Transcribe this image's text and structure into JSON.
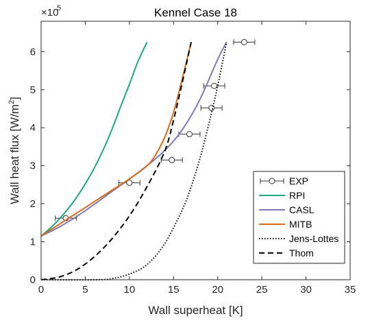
{
  "chart_data": {
    "type": "line",
    "title": "Kennel Case 18",
    "xlabel": "Wall superheat [K]",
    "ylabel_main": "Wall heat flux [W/m",
    "ylabel_sup": "2",
    "ylabel_end": "]",
    "y_exponent_base": "×10",
    "y_exponent_power": "5",
    "xlim": [
      0,
      35
    ],
    "ylim": [
      0,
      6.8
    ],
    "xticks": [
      0,
      5,
      10,
      15,
      20,
      25,
      30,
      35
    ],
    "yticks": [
      0,
      1,
      2,
      3,
      4,
      5,
      6
    ],
    "grid": false,
    "legend_position": "bottom-right",
    "series": [
      {
        "name": "EXP",
        "style": "markers",
        "color": "#333333",
        "points": [
          {
            "x": 2.8,
            "y": 1.62,
            "xerr": 1.2
          },
          {
            "x": 10.0,
            "y": 2.55,
            "xerr": 1.2
          },
          {
            "x": 14.8,
            "y": 3.15,
            "xerr": 1.2
          },
          {
            "x": 16.8,
            "y": 3.83,
            "xerr": 1.2
          },
          {
            "x": 19.3,
            "y": 4.52,
            "xerr": 1.2
          },
          {
            "x": 19.6,
            "y": 5.1,
            "xerr": 1.2
          },
          {
            "x": 23.0,
            "y": 6.25,
            "xerr": 1.2
          }
        ]
      },
      {
        "name": "RPI",
        "style": "solid",
        "color": "#1aa884",
        "x": [
          0,
          1,
          2,
          3,
          4,
          5,
          6,
          7,
          8,
          9,
          10,
          11,
          12
        ],
        "y": [
          1.15,
          1.35,
          1.58,
          1.85,
          2.16,
          2.52,
          2.93,
          3.4,
          3.94,
          4.55,
          5.14,
          5.76,
          6.25
        ]
      },
      {
        "name": "CASL",
        "style": "solid",
        "color": "#7e78ba",
        "x": [
          0,
          2,
          4,
          6,
          8,
          10,
          12,
          14,
          16,
          18,
          20,
          21
        ],
        "y": [
          1.15,
          1.38,
          1.66,
          1.98,
          2.32,
          2.65,
          3.0,
          3.4,
          3.95,
          4.75,
          5.8,
          6.25
        ]
      },
      {
        "name": "MITB",
        "style": "solid",
        "color": "#d66a18",
        "x": [
          0,
          2,
          4,
          6,
          8,
          10,
          12,
          13,
          14,
          15,
          16,
          17
        ],
        "y": [
          1.15,
          1.45,
          1.75,
          2.05,
          2.35,
          2.65,
          3.0,
          3.3,
          3.75,
          4.4,
          5.3,
          6.25
        ]
      },
      {
        "name": "Jens-Lottes",
        "style": "dotted",
        "color": "#000000",
        "x": [
          0,
          6,
          8,
          10,
          12,
          14,
          16,
          17,
          18,
          19,
          20,
          21
        ],
        "y": [
          0,
          0,
          0.03,
          0.15,
          0.4,
          0.95,
          1.85,
          2.45,
          3.2,
          4.1,
          5.1,
          6.25
        ]
      },
      {
        "name": "Thom",
        "style": "dashed",
        "color": "#000000",
        "x": [
          0,
          2,
          4,
          6,
          8,
          10,
          12,
          14,
          15,
          16,
          17
        ],
        "y": [
          0,
          0.07,
          0.26,
          0.6,
          1.07,
          1.68,
          2.45,
          3.38,
          4.2,
          5.2,
          6.25
        ]
      }
    ]
  }
}
